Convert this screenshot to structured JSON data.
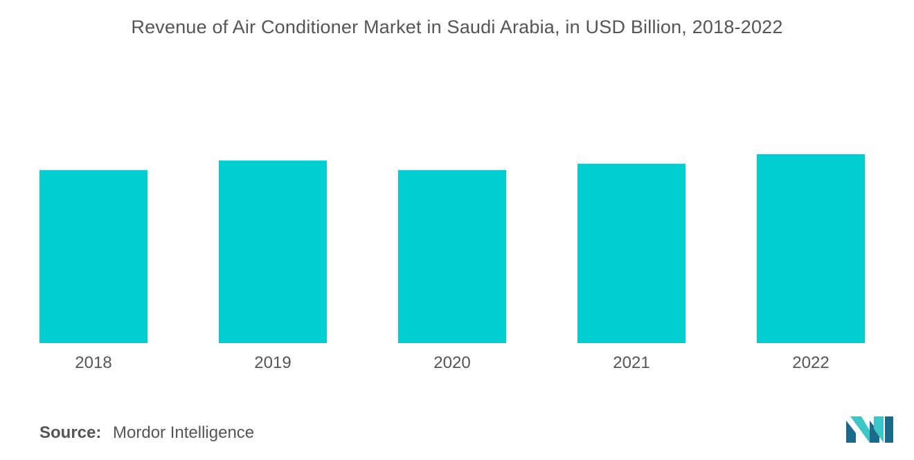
{
  "chart_data": {
    "type": "bar",
    "title": "Revenue of Air Conditioner Market in Saudi Arabia, in USD Billion, 2018-2022",
    "categories": [
      "2018",
      "2019",
      "2020",
      "2021",
      "2022"
    ],
    "values": [
      2.2,
      2.32,
      2.2,
      2.28,
      2.4
    ],
    "xlabel": "",
    "ylabel": "",
    "ylim": [
      0,
      2.4
    ],
    "grid": false,
    "legend": "none",
    "bar_color": "#00CED1"
  },
  "source": {
    "label": "Source:",
    "text": "Mordor Intelligence"
  },
  "logo": {
    "icon": "mordor-intelligence-logo-icon",
    "colors": [
      "#1B6A8A",
      "#3CC6C8"
    ]
  }
}
